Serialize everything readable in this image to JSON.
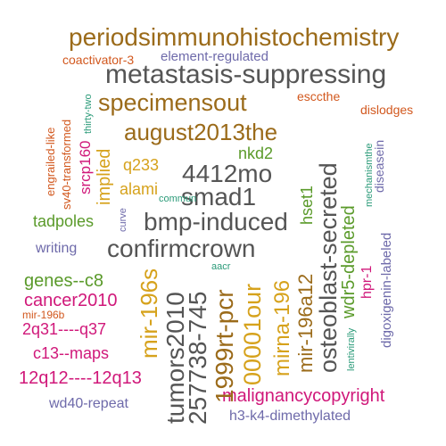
{
  "palette": {
    "brown": "#9b6b1a",
    "gray": "#555555",
    "orange": "#d2581e",
    "green": "#5a9a2a",
    "purple": "#6e6aaa",
    "magenta": "#d0187a",
    "teal": "#2a9a78",
    "gold": "#d6a21c"
  },
  "words": [
    "periodsimmunohistochemistry",
    "element-regulated",
    "coactivator-3",
    "metastasis-suppressing",
    "thirty-two",
    "specimensout",
    "esccthe",
    "dislodges",
    "engrailed-like",
    "sv40-transformed",
    "august2013the",
    "srcp160",
    "implied",
    "mechanismthe",
    "diseasein",
    "q233",
    "4412mo",
    "nkd2",
    "alami",
    "smad1",
    "hset1",
    "commun",
    "osteoblast-secreted",
    "tadpoles",
    "curve",
    "bmp-induced",
    "digoxigenin-labeled",
    "wdr5-depleted",
    "writing",
    "confirmcrown",
    "hpr-1",
    "mir-196s",
    "aacr",
    "genes--c8",
    "tumors2010",
    "257738-745",
    "1999rt-pcr",
    "00001our",
    "mirna-196",
    "mir-196a12",
    "cancer2010",
    "mir-196b",
    "2q31----q37",
    "lentivirally",
    "c13--maps",
    "12q12----12q13",
    "malignancycopyright",
    "wd40-repeat",
    "h3-k4-dimethylated"
  ]
}
